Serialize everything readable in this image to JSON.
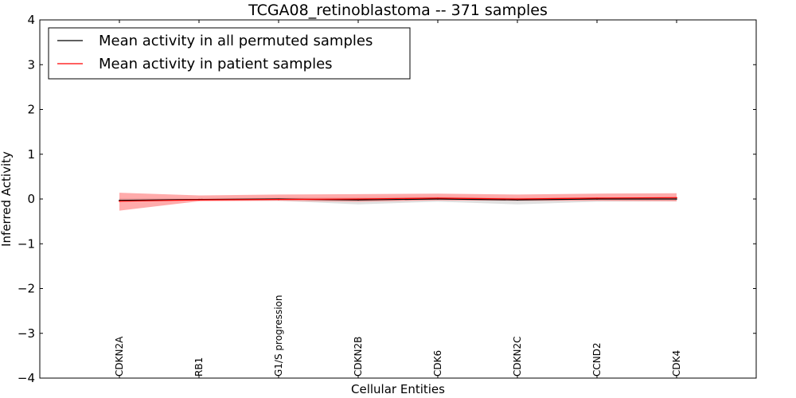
{
  "chart_data": {
    "type": "line",
    "title": "TCGA08_retinoblastoma -- 371 samples",
    "xlabel": "Cellular Entities",
    "ylabel": "Inferred Activity",
    "ylim": [
      -4,
      4
    ],
    "yticks": [
      {
        "value": 4,
        "label": "4"
      },
      {
        "value": 3,
        "label": "3"
      },
      {
        "value": 2,
        "label": "2"
      },
      {
        "value": 1,
        "label": "1"
      },
      {
        "value": 0,
        "label": "0"
      },
      {
        "value": -1,
        "label": "−1"
      },
      {
        "value": -2,
        "label": "−2"
      },
      {
        "value": -3,
        "label": "−3"
      },
      {
        "value": -4,
        "label": "−4"
      }
    ],
    "categories": [
      "CDKN2A",
      "RB1",
      "G1/S progression",
      "CDKN2B",
      "CDK6",
      "CDKN2C",
      "CCND2",
      "CDK4"
    ],
    "legend_position": "top-left",
    "series": [
      {
        "name": "Mean activity in all permuted samples",
        "color": "#000000",
        "values": [
          -0.03,
          -0.01,
          0.0,
          -0.02,
          0.0,
          -0.02,
          0.0,
          0.0
        ],
        "band_lower": [
          -0.05,
          -0.03,
          -0.04,
          -0.12,
          -0.06,
          -0.12,
          -0.06,
          -0.05
        ],
        "band_upper": [
          0.02,
          0.01,
          0.03,
          0.04,
          0.05,
          0.03,
          0.04,
          0.04
        ],
        "band_color": "#bbbbbb"
      },
      {
        "name": "Mean activity in patient samples",
        "color": "#ff0000",
        "values": [
          -0.05,
          -0.02,
          -0.01,
          0.0,
          0.02,
          0.0,
          0.02,
          0.03
        ],
        "band_lower": [
          -0.26,
          -0.05,
          -0.04,
          -0.06,
          -0.03,
          -0.04,
          -0.04,
          -0.05
        ],
        "band_upper": [
          0.14,
          0.08,
          0.1,
          0.11,
          0.12,
          0.1,
          0.12,
          0.13
        ],
        "band_color": "#ff6666"
      }
    ]
  }
}
